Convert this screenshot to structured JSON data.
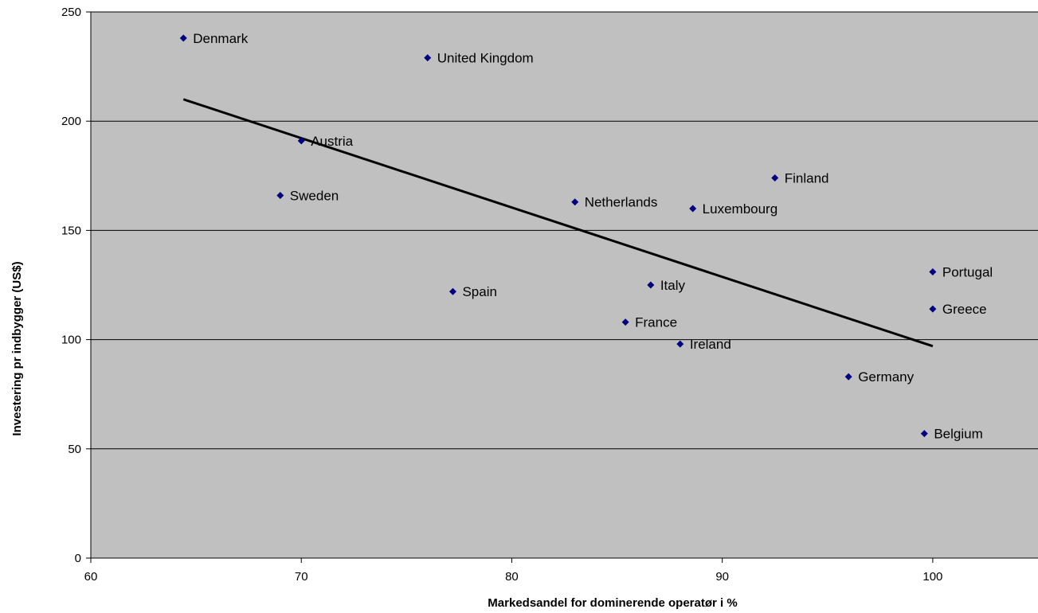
{
  "chart_data": {
    "type": "scatter",
    "title": "",
    "xlabel": "Markedsandel for dominerende operatør i %",
    "ylabel": "Investering pr indbygger (US$)",
    "xlim": [
      60,
      105
    ],
    "ylim": [
      0,
      250
    ],
    "xticks": [
      60,
      70,
      80,
      90,
      100
    ],
    "yticks": [
      0,
      50,
      100,
      150,
      200,
      250
    ],
    "grid": "horizontal",
    "legend": "none",
    "colors": {
      "plot_background": "#c0c0c0",
      "marker": "#000080",
      "trendline": "#000000",
      "gridline": "#000000"
    },
    "series": [
      {
        "points": [
          {
            "label": "Denmark",
            "x": 64.4,
            "y": 238
          },
          {
            "label": "United Kingdom",
            "x": 76.0,
            "y": 229
          },
          {
            "label": "Austria",
            "x": 70.0,
            "y": 191
          },
          {
            "label": "Sweden",
            "x": 69.0,
            "y": 166
          },
          {
            "label": "Netherlands",
            "x": 83.0,
            "y": 163
          },
          {
            "label": "Luxembourg",
            "x": 88.6,
            "y": 160
          },
          {
            "label": "Finland",
            "x": 92.5,
            "y": 174
          },
          {
            "label": "Portugal",
            "x": 100.0,
            "y": 131
          },
          {
            "label": "Greece",
            "x": 100.0,
            "y": 114
          },
          {
            "label": "Spain",
            "x": 77.2,
            "y": 122
          },
          {
            "label": "Italy",
            "x": 86.6,
            "y": 125
          },
          {
            "label": "France",
            "x": 85.4,
            "y": 108
          },
          {
            "label": "Ireland",
            "x": 88.0,
            "y": 98
          },
          {
            "label": "Germany",
            "x": 96.0,
            "y": 83
          },
          {
            "label": "Belgium",
            "x": 99.6,
            "y": 57
          }
        ]
      }
    ],
    "trendline": {
      "x": [
        64.4,
        100.0
      ],
      "y": [
        210,
        97
      ]
    }
  }
}
